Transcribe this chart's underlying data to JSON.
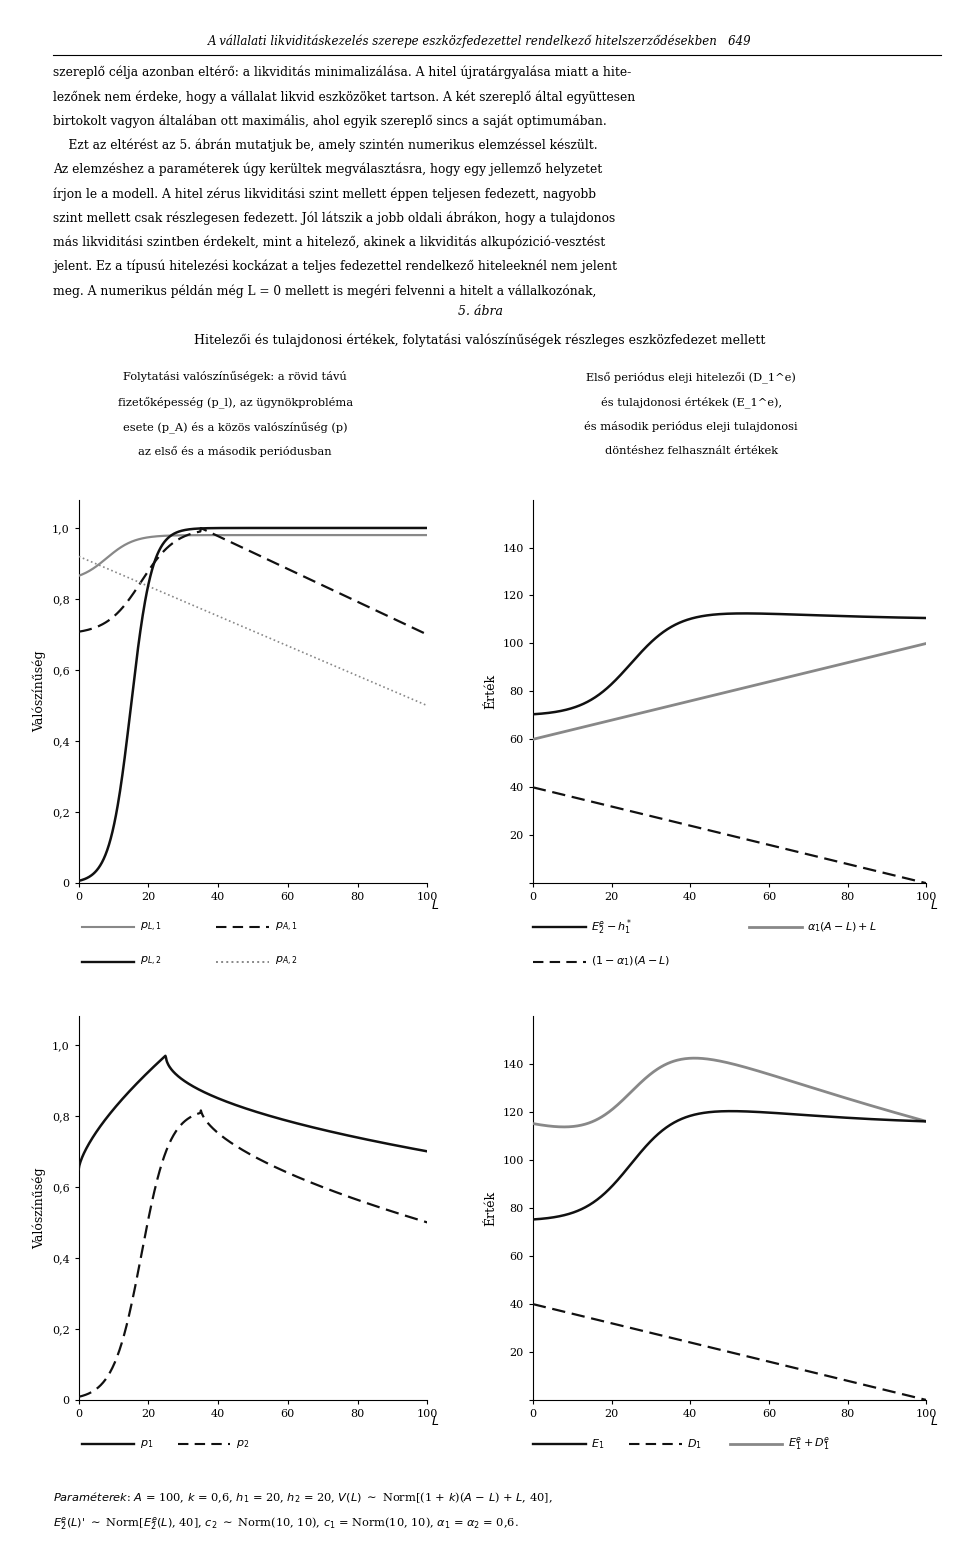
{
  "header_text": "A vállalati likviditáskezelés szerepe eszközfedezettel rendelkező hitelszerződésekben   649",
  "body_text_lines": [
    "szereplő célja azonban eltérő: a likviditás minimalizálása. A hitel újratárgyalása miatt a hite-",
    "lezőnek nem érdeke, hogy a vállalat likvid eszközöket tartson. A két szereplő által együttesen",
    "birtokolt vagyon általában ott maximális, ahol egyik szereplő sincs a saját optimumában.",
    "    Ezt az eltérést az 5. ábrán mutatjuk be, amely szintén numerikus elemzéssel készült.",
    "Az elemzéshez a paraméterek úgy kerültek megválasztásra, hogy egy jellemző helyzetet",
    "írjon le a modell. A hitel zérus likviditási szint mellett éppen teljesen fedezett, nagyobb",
    "szint mellett csak részlegesen fedezett. Jól látszik a jobb oldali ábrákon, hogy a tulajdonos",
    "más likviditási szintben érdekelt, mint a hitelező, akinek a likviditás alkupózició-vesztést",
    "jelent. Ez a típusú hitelezési kockázat a teljes fedezettel rendelkező hiteleeknél nem jelent",
    "meg. A numerikus példán még L = 0 mellett is megéri felvenni a hitelt a vállalkozónak,"
  ],
  "title_line1": "5. ábra",
  "title_line2": "Hitelezői és tulajdonosi értékek, folytatási valószínűségek részleges eszközfedezet mellett",
  "left_panel1_subtitle_l1": "Folytatási valószínűségek: a rövid távú",
  "left_panel1_subtitle_l2": "fizetőképesség (p_l), az ügynökprobléma",
  "left_panel1_subtitle_l3": "esete (p_A) és a közös valószínűség (p)",
  "left_panel1_subtitle_l4": "az első és a második periódusban",
  "right_panel1_subtitle_l1": "Első periódus eleji hitelezői (D_1^e)",
  "right_panel1_subtitle_l2": "és tulajdonosi értékek (E_1^e),",
  "right_panel1_subtitle_l3": "és második periódus eleji tulajdonosi",
  "right_panel1_subtitle_l4": "döntéshez felhasznált értékek",
  "left_panel1_ylabel": "Valószínűség",
  "right_panel1_ylabel": "Érték",
  "left_panel2_ylabel": "Valószínűség",
  "right_panel2_ylabel": "Érték",
  "alpha1": 0.6,
  "A": 100,
  "background": "#ffffff",
  "gray_color": "#888888",
  "dark_color": "#111111"
}
